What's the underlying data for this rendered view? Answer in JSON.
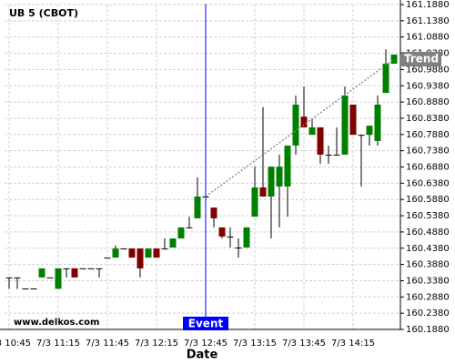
{
  "chart_data": {
    "type": "candlestick",
    "title": "UB 5 (CBOT)",
    "watermark": "www.delkos.com",
    "x_label": "Date",
    "categories": [
      "7/3 10:45",
      null,
      null,
      null,
      null,
      null,
      "7/3 11:15",
      null,
      null,
      null,
      null,
      null,
      "7/3 11:45",
      null,
      null,
      null,
      null,
      null,
      "7/3 12:15",
      null,
      null,
      null,
      null,
      null,
      "7/3 12:45",
      null,
      null,
      null,
      null,
      null,
      "7/3 13:15",
      null,
      null,
      null,
      null,
      null,
      "7/3 13:45",
      null,
      null,
      null,
      null,
      null,
      "7/3 14:15",
      null,
      null,
      null,
      null,
      null
    ],
    "open": [
      160.348,
      160.348,
      160.314,
      160.314,
      160.348,
      160.348,
      160.313,
      160.376,
      160.376,
      160.376,
      160.376,
      160.376,
      160.409,
      160.409,
      160.437,
      160.437,
      160.437,
      160.409,
      160.437,
      160.437,
      160.44,
      160.468,
      160.502,
      160.53,
      160.597,
      160.563,
      160.502,
      160.474,
      160.44,
      160.44,
      160.535,
      160.625,
      160.597,
      160.628,
      160.628,
      160.754,
      160.843,
      160.787,
      160.81,
      160.726,
      160.726,
      160.726,
      160.88,
      160.787,
      160.787,
      160.768,
      160.916,
      161.006
    ],
    "high": [
      160.348,
      160.348,
      160.314,
      160.314,
      160.376,
      160.348,
      160.376,
      160.376,
      160.376,
      160.376,
      160.376,
      160.376,
      160.409,
      160.446,
      160.437,
      160.437,
      160.437,
      160.437,
      160.437,
      160.468,
      160.468,
      160.502,
      160.535,
      160.656,
      160.597,
      160.563,
      160.502,
      160.502,
      160.468,
      160.502,
      160.689,
      160.872,
      160.689,
      160.726,
      160.754,
      160.908,
      160.936,
      160.838,
      160.81,
      160.754,
      160.81,
      160.936,
      160.88,
      160.787,
      160.815,
      160.908,
      161.05,
      161.034
    ],
    "low": [
      160.313,
      160.313,
      160.314,
      160.314,
      160.348,
      160.348,
      160.313,
      160.348,
      160.348,
      160.376,
      160.376,
      160.348,
      160.409,
      160.409,
      160.437,
      160.409,
      160.348,
      160.409,
      160.409,
      160.437,
      160.44,
      160.468,
      160.502,
      160.53,
      160.597,
      160.502,
      160.468,
      160.44,
      160.409,
      160.44,
      160.535,
      160.597,
      160.468,
      160.502,
      160.535,
      160.726,
      160.81,
      160.787,
      160.698,
      160.698,
      160.726,
      160.726,
      160.787,
      160.628,
      160.754,
      160.754,
      160.916,
      161.006
    ],
    "close": [
      160.348,
      160.348,
      160.314,
      160.314,
      160.376,
      160.348,
      160.376,
      160.376,
      160.348,
      160.376,
      160.376,
      160.376,
      160.409,
      160.437,
      160.437,
      160.409,
      160.376,
      160.437,
      160.409,
      160.437,
      160.468,
      160.502,
      160.502,
      160.597,
      160.597,
      160.53,
      160.474,
      160.474,
      160.44,
      160.502,
      160.625,
      160.597,
      160.689,
      160.689,
      160.754,
      160.88,
      160.81,
      160.81,
      160.726,
      160.726,
      160.726,
      160.908,
      160.787,
      160.787,
      160.815,
      160.88,
      161.006,
      161.034
    ],
    "up_color": "#008000",
    "down_color": "#800000",
    "ylim": [
      160.188,
      161.188
    ],
    "yticks": [
      {
        "value": 160.188,
        "label": "160.1880"
      },
      {
        "value": 160.238,
        "label": "160.2380"
      },
      {
        "value": 160.288,
        "label": "160.2880"
      },
      {
        "value": 160.338,
        "label": "160.3380"
      },
      {
        "value": 160.388,
        "label": "160.3880"
      },
      {
        "value": 160.438,
        "label": "160.4380"
      },
      {
        "value": 160.488,
        "label": "160.4880"
      },
      {
        "value": 160.538,
        "label": "160.5380"
      },
      {
        "value": 160.588,
        "label": "160.5880"
      },
      {
        "value": 160.638,
        "label": "160.6380"
      },
      {
        "value": 160.688,
        "label": "160.6880"
      },
      {
        "value": 160.738,
        "label": "160.7380"
      },
      {
        "value": 160.788,
        "label": "160.7880"
      },
      {
        "value": 160.838,
        "label": "160.8380"
      },
      {
        "value": 160.888,
        "label": "160.8880"
      },
      {
        "value": 160.938,
        "label": "160.9380"
      },
      {
        "value": 160.988,
        "label": "160.9880"
      },
      {
        "value": 161.038,
        "label": "161.0380"
      },
      {
        "value": 161.088,
        "label": "161.0880"
      },
      {
        "value": 161.138,
        "label": "161.1380"
      },
      {
        "value": 161.188,
        "label": "161.1880"
      }
    ],
    "grid": true,
    "event": {
      "label": "Event",
      "at": "7/3 12:45",
      "color": "#0000ff"
    },
    "trend": {
      "label": "Trend",
      "values": [
        160.597,
        161.02
      ],
      "color": "#808080"
    }
  }
}
